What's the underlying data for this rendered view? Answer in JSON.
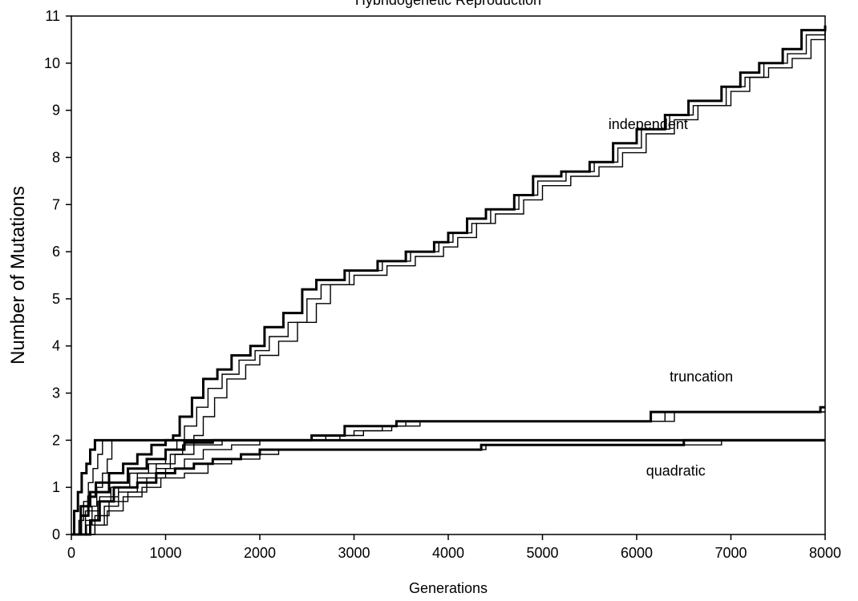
{
  "chart_data": {
    "type": "line",
    "title": "Hybridogenetic Reproduction",
    "xlabel": "Generations",
    "ylabel": "Number of Mutations",
    "xlim": [
      0,
      8000
    ],
    "ylim": [
      0,
      11
    ],
    "xticks": [
      0,
      1000,
      2000,
      3000,
      4000,
      5000,
      6000,
      7000,
      8000
    ],
    "yticks": [
      0,
      1,
      2,
      3,
      4,
      5,
      6,
      7,
      8,
      9,
      10,
      11
    ],
    "grid": false,
    "legend": "none",
    "line_color": "#000000",
    "annotations": [
      {
        "text": "independent",
        "x": 5700,
        "y": 8.6
      },
      {
        "text": "truncation",
        "x": 6350,
        "y": 3.25
      },
      {
        "text": "quadratic",
        "x": 6100,
        "y": 1.25
      }
    ],
    "series": [
      {
        "group": "independent",
        "weight": "thick",
        "step": true,
        "points": [
          [
            0,
            0
          ],
          [
            100,
            0.4
          ],
          [
            180,
            0.8
          ],
          [
            260,
            1.1
          ],
          [
            400,
            1.3
          ],
          [
            550,
            1.5
          ],
          [
            700,
            1.7
          ],
          [
            850,
            1.9
          ],
          [
            1000,
            2.0
          ],
          [
            1080,
            2.1
          ],
          [
            1150,
            2.5
          ],
          [
            1280,
            2.9
          ],
          [
            1400,
            3.3
          ],
          [
            1550,
            3.5
          ],
          [
            1700,
            3.8
          ],
          [
            1900,
            4.0
          ],
          [
            2050,
            4.4
          ],
          [
            2250,
            4.7
          ],
          [
            2450,
            5.2
          ],
          [
            2600,
            5.4
          ],
          [
            2900,
            5.6
          ],
          [
            3250,
            5.8
          ],
          [
            3550,
            6.0
          ],
          [
            3850,
            6.2
          ],
          [
            4000,
            6.4
          ],
          [
            4200,
            6.7
          ],
          [
            4400,
            6.9
          ],
          [
            4700,
            7.2
          ],
          [
            4900,
            7.6
          ],
          [
            5200,
            7.7
          ],
          [
            5500,
            7.9
          ],
          [
            5750,
            8.3
          ],
          [
            6000,
            8.6
          ],
          [
            6300,
            8.9
          ],
          [
            6550,
            9.2
          ],
          [
            6900,
            9.5
          ],
          [
            7100,
            9.8
          ],
          [
            7300,
            10.0
          ],
          [
            7550,
            10.3
          ],
          [
            7750,
            10.7
          ],
          [
            8000,
            10.8
          ]
        ]
      },
      {
        "group": "independent",
        "weight": "thin",
        "step": true,
        "points": [
          [
            0,
            0
          ],
          [
            150,
            0.3
          ],
          [
            280,
            0.7
          ],
          [
            420,
            1.0
          ],
          [
            620,
            1.3
          ],
          [
            820,
            1.5
          ],
          [
            1000,
            1.8
          ],
          [
            1120,
            2.0
          ],
          [
            1200,
            2.3
          ],
          [
            1330,
            2.7
          ],
          [
            1450,
            3.1
          ],
          [
            1600,
            3.4
          ],
          [
            1780,
            3.7
          ],
          [
            1950,
            3.9
          ],
          [
            2100,
            4.2
          ],
          [
            2300,
            4.5
          ],
          [
            2500,
            5.0
          ],
          [
            2650,
            5.3
          ],
          [
            2950,
            5.6
          ],
          [
            3300,
            5.8
          ],
          [
            3600,
            6.0
          ],
          [
            3900,
            6.2
          ],
          [
            4050,
            6.4
          ],
          [
            4250,
            6.6
          ],
          [
            4450,
            6.9
          ],
          [
            4750,
            7.2
          ],
          [
            4950,
            7.5
          ],
          [
            5250,
            7.7
          ],
          [
            5550,
            7.9
          ],
          [
            5800,
            8.2
          ],
          [
            6050,
            8.6
          ],
          [
            6350,
            8.9
          ],
          [
            6600,
            9.1
          ],
          [
            6950,
            9.5
          ],
          [
            7150,
            9.7
          ],
          [
            7350,
            10.0
          ],
          [
            7600,
            10.2
          ],
          [
            7800,
            10.6
          ],
          [
            8000,
            10.8
          ]
        ]
      },
      {
        "group": "independent",
        "weight": "thin",
        "step": true,
        "points": [
          [
            0,
            0
          ],
          [
            200,
            0.2
          ],
          [
            350,
            0.6
          ],
          [
            500,
            0.9
          ],
          [
            700,
            1.2
          ],
          [
            900,
            1.4
          ],
          [
            1050,
            1.7
          ],
          [
            1180,
            1.9
          ],
          [
            1300,
            2.1
          ],
          [
            1400,
            2.5
          ],
          [
            1520,
            2.9
          ],
          [
            1650,
            3.3
          ],
          [
            1850,
            3.6
          ],
          [
            2000,
            3.8
          ],
          [
            2200,
            4.1
          ],
          [
            2400,
            4.5
          ],
          [
            2600,
            4.9
          ],
          [
            2750,
            5.3
          ],
          [
            3000,
            5.5
          ],
          [
            3350,
            5.7
          ],
          [
            3650,
            5.9
          ],
          [
            3950,
            6.1
          ],
          [
            4100,
            6.3
          ],
          [
            4300,
            6.6
          ],
          [
            4500,
            6.8
          ],
          [
            4800,
            7.1
          ],
          [
            5000,
            7.4
          ],
          [
            5300,
            7.6
          ],
          [
            5600,
            7.8
          ],
          [
            5850,
            8.1
          ],
          [
            6100,
            8.5
          ],
          [
            6400,
            8.8
          ],
          [
            6650,
            9.1
          ],
          [
            7000,
            9.4
          ],
          [
            7200,
            9.7
          ],
          [
            7400,
            9.9
          ],
          [
            7650,
            10.1
          ],
          [
            7850,
            10.5
          ],
          [
            8000,
            10.7
          ]
        ]
      },
      {
        "group": "truncation",
        "weight": "thick",
        "step": true,
        "points": [
          [
            0,
            0
          ],
          [
            100,
            0.6
          ],
          [
            200,
            0.9
          ],
          [
            400,
            1.1
          ],
          [
            600,
            1.4
          ],
          [
            800,
            1.6
          ],
          [
            1000,
            1.8
          ],
          [
            1200,
            1.95
          ],
          [
            1500,
            2.0
          ],
          [
            2300,
            2.0
          ],
          [
            2550,
            2.1
          ],
          [
            2900,
            2.3
          ],
          [
            3200,
            2.3
          ],
          [
            3450,
            2.4
          ],
          [
            6100,
            2.4
          ],
          [
            6150,
            2.6
          ],
          [
            7900,
            2.6
          ],
          [
            7950,
            2.7
          ],
          [
            8000,
            2.7
          ]
        ]
      },
      {
        "group": "truncation",
        "weight": "thin",
        "step": true,
        "points": [
          [
            0,
            0
          ],
          [
            150,
            0.5
          ],
          [
            300,
            0.8
          ],
          [
            500,
            1.0
          ],
          [
            700,
            1.3
          ],
          [
            900,
            1.5
          ],
          [
            1100,
            1.7
          ],
          [
            1300,
            1.9
          ],
          [
            1600,
            2.0
          ],
          [
            2450,
            2.0
          ],
          [
            2700,
            2.1
          ],
          [
            3000,
            2.2
          ],
          [
            3300,
            2.3
          ],
          [
            3550,
            2.4
          ],
          [
            6200,
            2.4
          ],
          [
            6300,
            2.6
          ],
          [
            8000,
            2.6
          ]
        ]
      },
      {
        "group": "truncation",
        "weight": "thin",
        "step": true,
        "points": [
          [
            0,
            0
          ],
          [
            250,
            0.4
          ],
          [
            400,
            0.7
          ],
          [
            600,
            0.9
          ],
          [
            800,
            1.2
          ],
          [
            1000,
            1.4
          ],
          [
            1200,
            1.6
          ],
          [
            1400,
            1.8
          ],
          [
            1700,
            1.9
          ],
          [
            2000,
            2.0
          ],
          [
            2600,
            2.0
          ],
          [
            2850,
            2.1
          ],
          [
            3100,
            2.2
          ],
          [
            3400,
            2.3
          ],
          [
            3700,
            2.4
          ],
          [
            6300,
            2.4
          ],
          [
            6400,
            2.6
          ],
          [
            8000,
            2.6
          ]
        ]
      },
      {
        "group": "quadratic",
        "weight": "thick",
        "step": true,
        "points": [
          [
            0,
            0
          ],
          [
            30,
            0.5
          ],
          [
            70,
            0.9
          ],
          [
            110,
            1.3
          ],
          [
            160,
            1.5
          ],
          [
            200,
            1.8
          ],
          [
            250,
            2.0
          ],
          [
            8000,
            2.0
          ]
        ]
      },
      {
        "group": "quadratic",
        "weight": "thin",
        "step": true,
        "points": [
          [
            0,
            0
          ],
          [
            80,
            0.3
          ],
          [
            130,
            0.7
          ],
          [
            180,
            1.1
          ],
          [
            230,
            1.4
          ],
          [
            280,
            1.7
          ],
          [
            330,
            2.0
          ],
          [
            8000,
            2.0
          ]
        ]
      },
      {
        "group": "quadratic",
        "weight": "thin",
        "step": true,
        "points": [
          [
            0,
            0
          ],
          [
            160,
            0.2
          ],
          [
            220,
            0.6
          ],
          [
            270,
            1.0
          ],
          [
            330,
            1.3
          ],
          [
            380,
            1.6
          ],
          [
            430,
            2.0
          ],
          [
            8000,
            2.0
          ]
        ]
      },
      {
        "group": "quadratic-slow",
        "weight": "thick",
        "step": true,
        "points": [
          [
            0,
            0
          ],
          [
            200,
            0.3
          ],
          [
            300,
            0.7
          ],
          [
            450,
            1.0
          ],
          [
            700,
            1.1
          ],
          [
            900,
            1.3
          ],
          [
            1100,
            1.4
          ],
          [
            1300,
            1.5
          ],
          [
            1500,
            1.6
          ],
          [
            1800,
            1.7
          ],
          [
            2000,
            1.8
          ],
          [
            4300,
            1.8
          ],
          [
            4350,
            1.9
          ],
          [
            6450,
            1.9
          ],
          [
            6500,
            2.0
          ],
          [
            8000,
            2.0
          ]
        ]
      },
      {
        "group": "quadratic-slow",
        "weight": "thin",
        "step": true,
        "points": [
          [
            0,
            0
          ],
          [
            250,
            0.2
          ],
          [
            380,
            0.5
          ],
          [
            550,
            0.8
          ],
          [
            750,
            1.0
          ],
          [
            950,
            1.2
          ],
          [
            1200,
            1.3
          ],
          [
            1450,
            1.5
          ],
          [
            1700,
            1.6
          ],
          [
            2000,
            1.7
          ],
          [
            2200,
            1.8
          ],
          [
            4350,
            1.8
          ],
          [
            4400,
            1.9
          ],
          [
            6850,
            1.9
          ],
          [
            6900,
            2.0
          ],
          [
            8000,
            2.0
          ]
        ]
      }
    ]
  }
}
